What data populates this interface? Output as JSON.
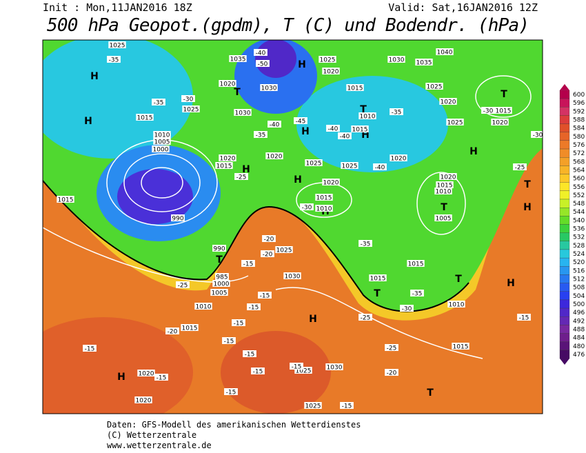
{
  "header": {
    "init": "Init : Mon,11JAN2016 18Z",
    "valid": "Valid: Sat,16JAN2016 12Z",
    "title": "500 hPa Geopot.(gpdm), T (C) und Bodendr. (hPa)"
  },
  "colorbar": {
    "levels": [
      600,
      596,
      592,
      588,
      584,
      580,
      576,
      572,
      568,
      564,
      560,
      556,
      552,
      548,
      544,
      540,
      536,
      532,
      528,
      524,
      520,
      516,
      512,
      508,
      504,
      500,
      496,
      492,
      488,
      484,
      480,
      476
    ],
    "colors": [
      "#b4004b",
      "#c8145a",
      "#d43264",
      "#dc3c3c",
      "#e0502a",
      "#e66428",
      "#ec7a28",
      "#f08c28",
      "#f4a028",
      "#f8b428",
      "#fcc828",
      "#fce628",
      "#f0f028",
      "#c8f028",
      "#96e628",
      "#64dc28",
      "#3cd23c",
      "#28c864",
      "#28c8a0",
      "#28c8dc",
      "#28b4f0",
      "#2896f0",
      "#2878f0",
      "#285af0",
      "#2840f0",
      "#3c28dc",
      "#5028c8",
      "#6428b4",
      "#7828a0",
      "#6e1e8c",
      "#5a1478",
      "#460a64"
    ]
  },
  "map": {
    "labels": [
      "H",
      "H",
      "T",
      "H",
      "H",
      "T",
      "H",
      "T",
      "H",
      "H",
      "H",
      "H",
      "T",
      "T",
      "H",
      "T",
      "T",
      "H",
      "H",
      "T",
      "T",
      "H",
      "1025",
      "1035",
      "1030",
      "1020",
      "1030",
      "1025",
      "1015",
      "1010",
      "1005",
      "1000",
      "1025",
      "1020",
      "1015",
      "1010",
      "1015",
      "1020",
      "1025",
      "1030",
      "1035",
      "1040",
      "1025",
      "1020",
      "1025",
      "1015",
      "1020",
      "1020",
      "1025",
      "1020",
      "1015",
      "1010",
      "1020",
      "1015",
      "1010",
      "1005",
      "990",
      "1015",
      "990",
      "1025",
      "1030",
      "985",
      "1000",
      "1005",
      "1010",
      "1015",
      "1015",
      "1015",
      "1010",
      "1015",
      "1020",
      "1020",
      "1025",
      "1030",
      "1025",
      "1020",
      "1015",
      "-35",
      "-35",
      "-30",
      "-50",
      "-40",
      "-45",
      "-40",
      "-35",
      "-40",
      "-40",
      "-35",
      "-30",
      "-30",
      "-40",
      "-35",
      "-30",
      "-25",
      "-20",
      "-20",
      "-15",
      "-25",
      "-20",
      "-15",
      "-15",
      "-15",
      "-15",
      "-15",
      "-15",
      "-15",
      "-15",
      "-15",
      "-15",
      "-15",
      "-20",
      "-25",
      "-25",
      "-35",
      "-30",
      "-15",
      "-25"
    ]
  },
  "footer": {
    "lines": [
      "Daten: GFS-Modell des amerikanischen Wetterdienstes",
      "(C) Wetterzentrale",
      "www.wetterzentrale.de"
    ]
  }
}
